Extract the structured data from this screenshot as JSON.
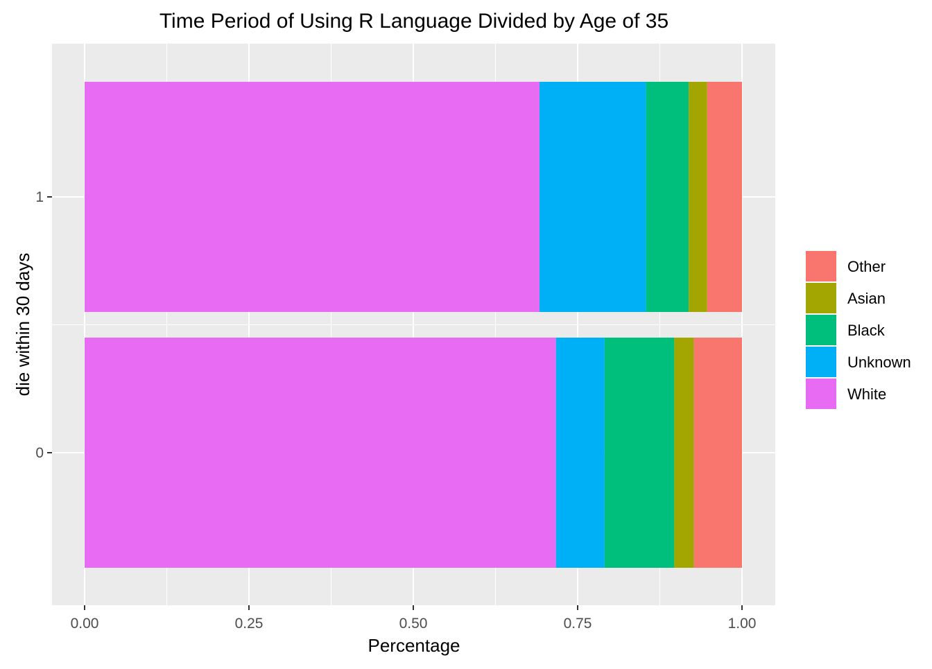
{
  "chart_data": {
    "type": "bar",
    "orientation": "horizontal",
    "stacked": true,
    "title": "Time Period of Using R Language Divided by Age of 35",
    "xlabel": "Percentage",
    "ylabel": "die within 30 days",
    "xlim": [
      0,
      1
    ],
    "x_ticks": [
      "0.00",
      "0.25",
      "0.50",
      "0.75",
      "1.00"
    ],
    "categories": [
      "1",
      "0"
    ],
    "series": [
      {
        "name": "White",
        "color": "#E76BF3",
        "values": [
          0.692,
          0.717
        ]
      },
      {
        "name": "Unknown",
        "color": "#00B0F6",
        "values": [
          0.162,
          0.074
        ]
      },
      {
        "name": "Black",
        "color": "#00BF7D",
        "values": [
          0.065,
          0.106
        ]
      },
      {
        "name": "Asian",
        "color": "#A3A500",
        "values": [
          0.028,
          0.03
        ]
      },
      {
        "name": "Other",
        "color": "#F8766D",
        "values": [
          0.053,
          0.073
        ]
      }
    ],
    "legend_order": [
      "Other",
      "Asian",
      "Black",
      "Unknown",
      "White"
    ],
    "legend_position": "right",
    "grid": true,
    "panel_background": "#EBEBEB",
    "gridline_color": "#FFFFFF"
  }
}
